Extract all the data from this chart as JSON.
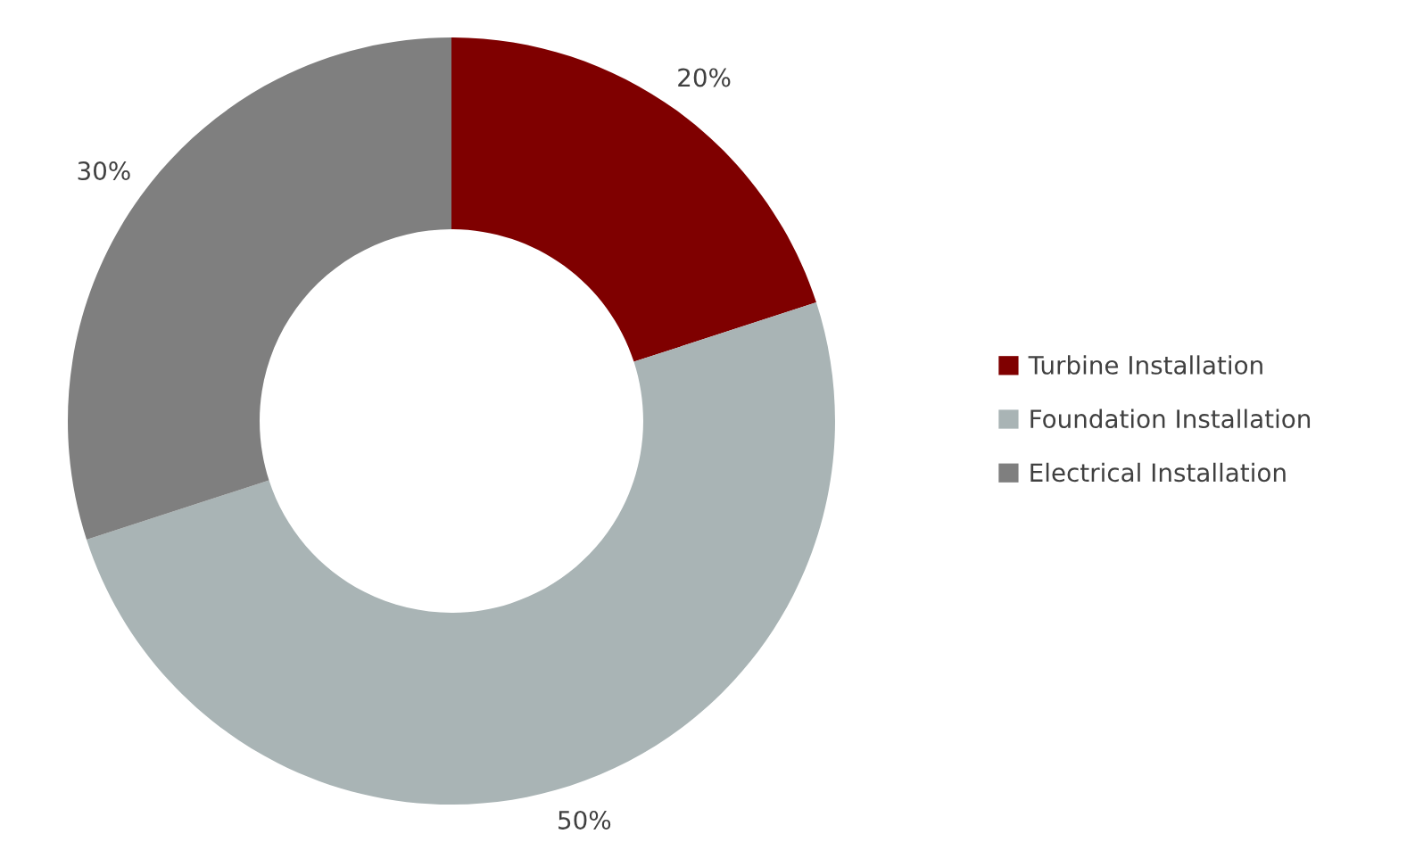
{
  "chart_data": {
    "type": "donut",
    "categories": [
      "Turbine Installation",
      "Foundation Installation",
      "Electrical Installation"
    ],
    "values": [
      20,
      50,
      30
    ],
    "colors": [
      "#7f0000",
      "#a9b4b5",
      "#7f7f7f"
    ],
    "value_labels": [
      "20%",
      "50%",
      "30%"
    ],
    "legend": "right"
  }
}
